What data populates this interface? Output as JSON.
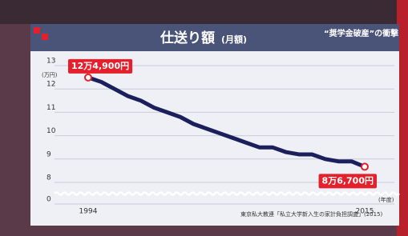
{
  "chart_data": {
    "type": "line",
    "title": "仕送り額",
    "subtitle": "(月額)",
    "banner": "“奨学金破産”の衝撃",
    "y_unit": "(万円)",
    "x_unit": "(年度)",
    "source": "東京私大教連「私立大学新入生の家計負担調査」(2015)",
    "x": [
      1994,
      1995,
      1996,
      1997,
      1998,
      1999,
      2000,
      2001,
      2002,
      2003,
      2004,
      2005,
      2006,
      2007,
      2008,
      2009,
      2010,
      2011,
      2012,
      2013,
      2014,
      2015
    ],
    "values": [
      12.49,
      12.3,
      12.0,
      11.7,
      11.5,
      11.2,
      11.0,
      10.8,
      10.5,
      10.3,
      10.1,
      9.9,
      9.7,
      9.5,
      9.5,
      9.3,
      9.2,
      9.2,
      9.0,
      8.9,
      8.9,
      8.67
    ],
    "value_labels": [
      "12万4,900円",
      null,
      null,
      null,
      null,
      null,
      null,
      null,
      null,
      null,
      null,
      null,
      null,
      null,
      null,
      null,
      null,
      null,
      null,
      null,
      null,
      "8万6,700円"
    ],
    "color": "#1b1f5c",
    "label_color": "#e3202b",
    "xlim": [
      1994,
      2015
    ],
    "xticks": [
      1994,
      2015
    ],
    "ylim": [
      0,
      13
    ],
    "yticks": [
      0,
      8,
      9,
      10,
      11,
      12,
      13
    ],
    "axis_break": [
      0,
      8
    ],
    "grid": true
  }
}
